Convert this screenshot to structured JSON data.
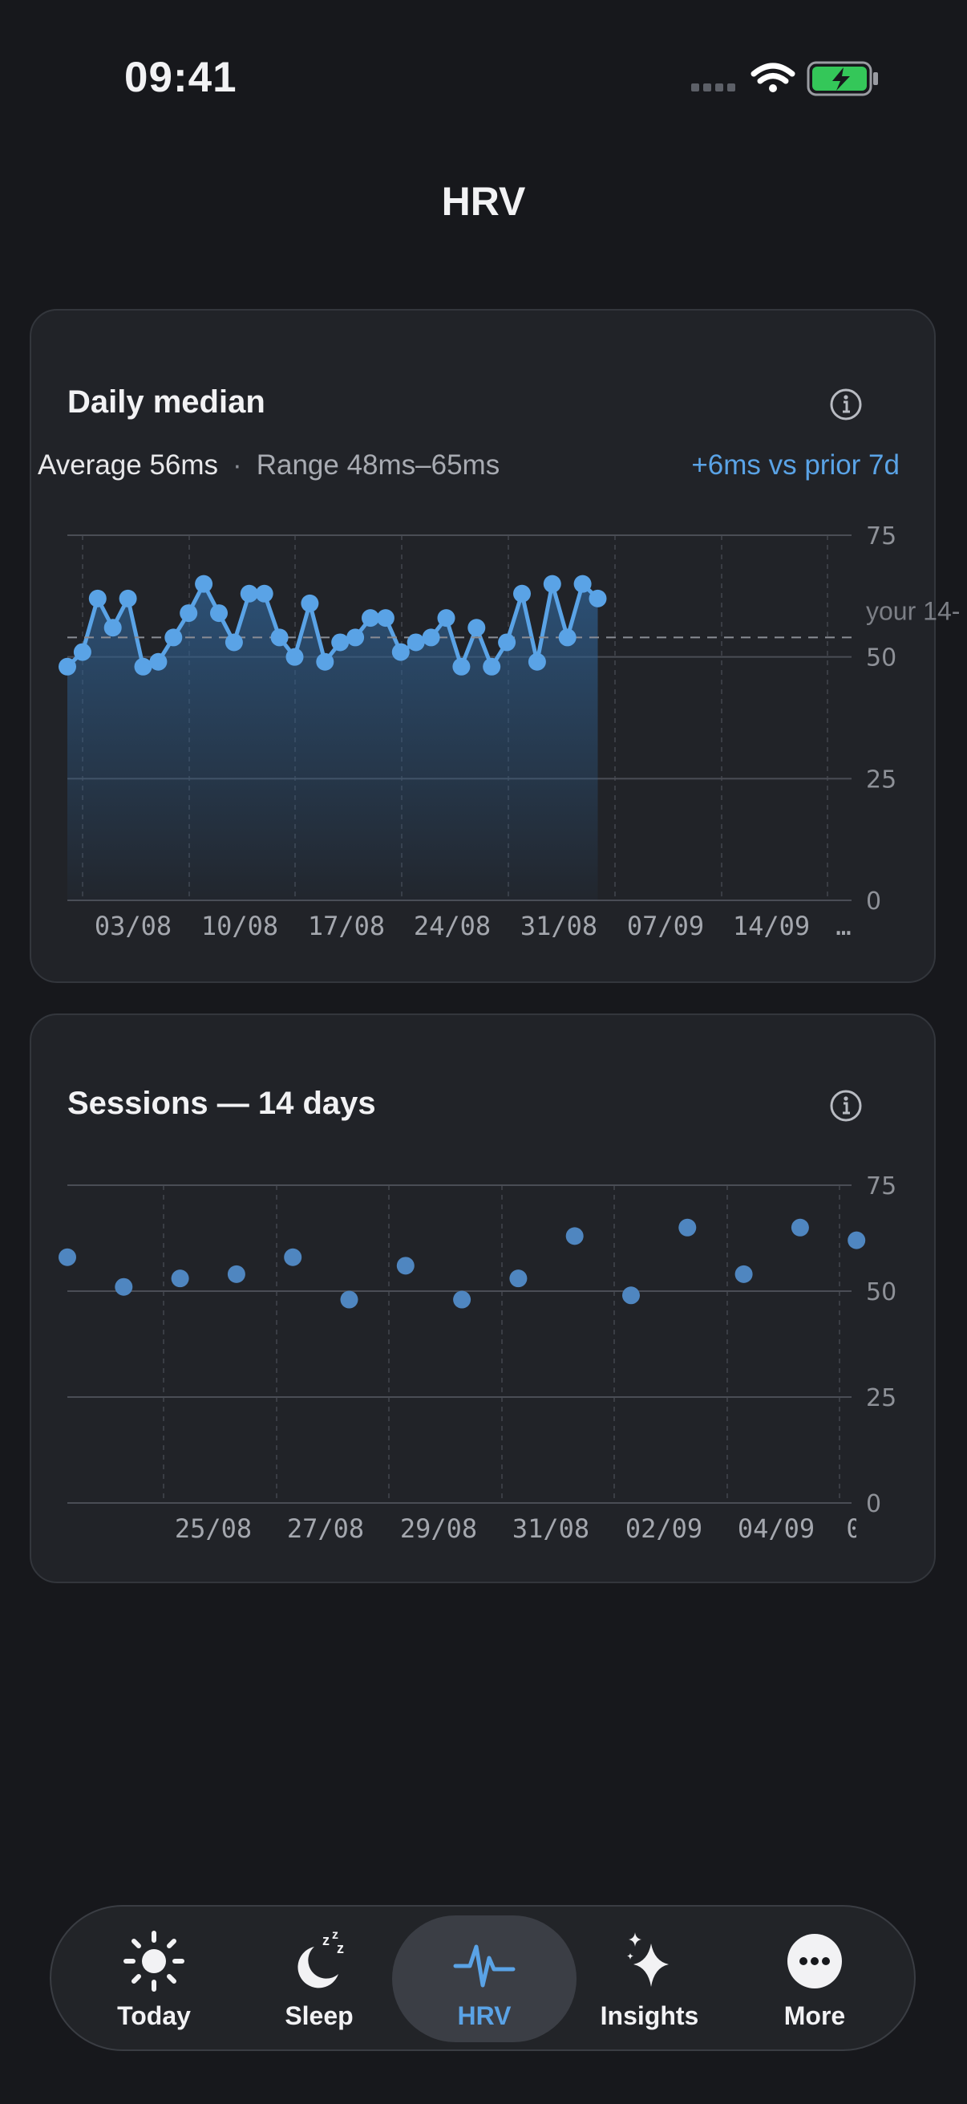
{
  "status_bar": {
    "time": "09:41"
  },
  "header": {
    "title": "HRV"
  },
  "daily_card": {
    "title": "Daily median",
    "average": "Average 56ms",
    "separator": "·",
    "range": "Range 48ms–65ms",
    "delta": "+6ms vs prior 7d",
    "reference_label": "your 14-",
    "reference_value": 54
  },
  "sessions_card": {
    "title": "Sessions — 14 days"
  },
  "tabs": [
    {
      "label": "Today",
      "icon": "sun-icon"
    },
    {
      "label": "Sleep",
      "icon": "moon-zzz-icon"
    },
    {
      "label": "HRV",
      "icon": "heartbeat-icon"
    },
    {
      "label": "Insights",
      "icon": "sparkles-icon"
    },
    {
      "label": "More",
      "icon": "more-icon"
    }
  ],
  "colors": {
    "accent": "#5aa3e6",
    "background": "#17181c",
    "card": "#212328",
    "battery": "#34c759"
  },
  "chart_data": [
    {
      "type": "line",
      "title": "Daily median",
      "ylim": [
        0,
        75
      ],
      "yticks": [
        0,
        25,
        50,
        75
      ],
      "xticks": [
        "03/08",
        "10/08",
        "17/08",
        "24/08",
        "31/08",
        "07/09",
        "14/09",
        "…"
      ],
      "x_days": [
        0,
        1,
        2,
        3,
        4,
        5,
        6,
        7,
        8,
        9,
        10,
        11,
        12,
        13,
        14,
        15,
        16,
        17,
        18,
        19,
        20,
        21,
        22,
        23,
        24,
        25,
        26,
        27,
        28,
        29,
        30,
        31,
        32,
        33,
        34,
        35
      ],
      "values": [
        48,
        51,
        62,
        56,
        62,
        48,
        49,
        54,
        59,
        65,
        59,
        53,
        63,
        63,
        54,
        50,
        61,
        49,
        53,
        54,
        58,
        58,
        51,
        53,
        54,
        58,
        48,
        56,
        48,
        53,
        63,
        49,
        65,
        54,
        65,
        62
      ],
      "reference_line": 54,
      "grid": true,
      "area_fill": true
    },
    {
      "type": "scatter",
      "title": "Sessions — 14 days",
      "ylim": [
        0,
        75
      ],
      "yticks": [
        0,
        25,
        50,
        75
      ],
      "xticks": [
        "25/08",
        "27/08",
        "29/08",
        "31/08",
        "02/09",
        "04/09",
        "0"
      ],
      "x_days": [
        0,
        1,
        2,
        3,
        4,
        5,
        6,
        7,
        8,
        9,
        10,
        11,
        12,
        13
      ],
      "values": [
        58,
        51,
        53,
        54,
        58,
        48,
        56,
        48,
        53,
        63,
        49,
        65,
        54,
        65,
        62
      ],
      "x_points": [
        0,
        1,
        2,
        3,
        4,
        5,
        6,
        7,
        8,
        9,
        10,
        11,
        12,
        13,
        14
      ],
      "grid": true
    }
  ]
}
